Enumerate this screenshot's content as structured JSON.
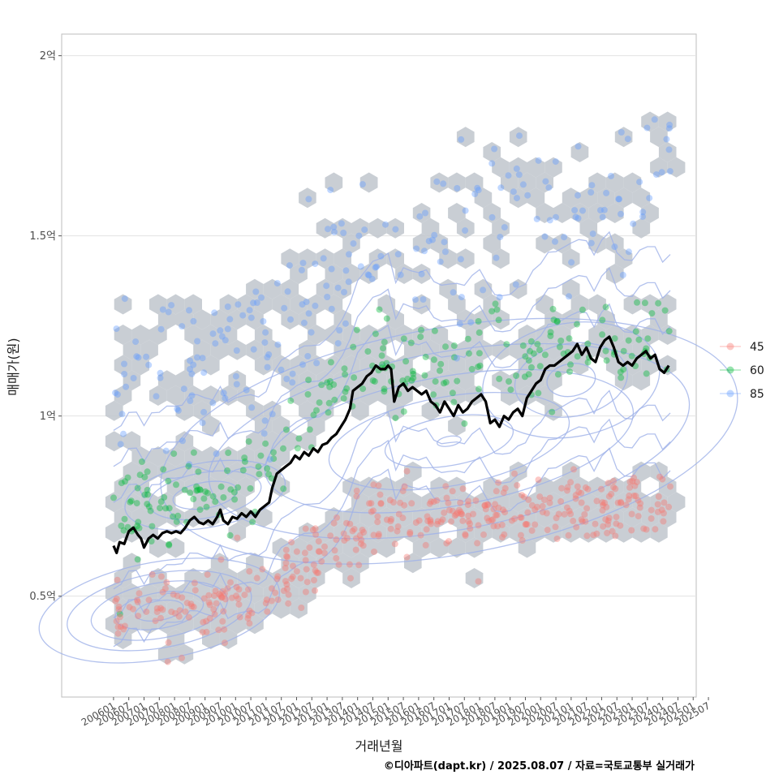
{
  "chart_data": {
    "type": "scatter",
    "xlabel": "거래년월",
    "ylabel": "매매가(원)",
    "caption": "©디아파트(dapt.kr) / 2025.08.07 / 자료=국토교통부 실거래가",
    "x_ticks": [
      "200601",
      "200607",
      "200701",
      "200707",
      "200801",
      "200807",
      "200901",
      "200907",
      "201001",
      "201007",
      "201101",
      "201107",
      "201201",
      "201207",
      "201301",
      "201307",
      "201401",
      "201407",
      "201501",
      "201507",
      "201601",
      "201607",
      "201701",
      "201707",
      "201801",
      "201807",
      "201901",
      "201907",
      "202001",
      "202007",
      "202101",
      "202107",
      "202201",
      "202207",
      "202301",
      "202307",
      "202401",
      "202407",
      "202501",
      "202507"
    ],
    "y_ticks": [
      {
        "value": 0.5,
        "label": "0.5억"
      },
      {
        "value": 1.0,
        "label": "1억"
      },
      {
        "value": 1.5,
        "label": "1.5억"
      },
      {
        "value": 2.0,
        "label": "2억"
      }
    ],
    "ylim": [
      0.22,
      2.06
    ],
    "xlim": [
      -3.4,
      38.2
    ],
    "legend": {
      "position": "right",
      "items": [
        {
          "label": "45",
          "color": "#F8766D"
        },
        {
          "label": "60",
          "color": "#00BA38"
        },
        {
          "label": "85",
          "color": "#619CFF"
        }
      ]
    },
    "hexbin_color": "#c0c5cc",
    "contour_color": "#9fb2e8",
    "trend_line": {
      "color": "#000000",
      "points": [
        [
          0,
          0.64
        ],
        [
          0.2,
          0.62
        ],
        [
          0.4,
          0.65
        ],
        [
          0.7,
          0.645
        ],
        [
          1,
          0.68
        ],
        [
          1.3,
          0.69
        ],
        [
          1.6,
          0.67
        ],
        [
          1.8,
          0.66
        ],
        [
          2,
          0.635
        ],
        [
          2.3,
          0.66
        ],
        [
          2.6,
          0.67
        ],
        [
          2.9,
          0.66
        ],
        [
          3.2,
          0.675
        ],
        [
          3.5,
          0.68
        ],
        [
          3.8,
          0.675
        ],
        [
          4.1,
          0.68
        ],
        [
          4.4,
          0.675
        ],
        [
          4.7,
          0.69
        ],
        [
          5,
          0.71
        ],
        [
          5.3,
          0.72
        ],
        [
          5.6,
          0.705
        ],
        [
          5.9,
          0.7
        ],
        [
          6.2,
          0.71
        ],
        [
          6.5,
          0.7
        ],
        [
          6.8,
          0.72
        ],
        [
          7.0,
          0.74
        ],
        [
          7.2,
          0.71
        ],
        [
          7.5,
          0.7
        ],
        [
          7.8,
          0.72
        ],
        [
          8.1,
          0.715
        ],
        [
          8.4,
          0.73
        ],
        [
          8.7,
          0.72
        ],
        [
          9,
          0.735
        ],
        [
          9.3,
          0.72
        ],
        [
          9.6,
          0.74
        ],
        [
          9.9,
          0.75
        ],
        [
          10.2,
          0.76
        ],
        [
          10.4,
          0.8
        ],
        [
          10.7,
          0.84
        ],
        [
          11,
          0.85
        ],
        [
          11.3,
          0.86
        ],
        [
          11.6,
          0.87
        ],
        [
          11.9,
          0.89
        ],
        [
          12.2,
          0.88
        ],
        [
          12.5,
          0.9
        ],
        [
          12.8,
          0.89
        ],
        [
          13.1,
          0.91
        ],
        [
          13.4,
          0.9
        ],
        [
          13.7,
          0.92
        ],
        [
          14,
          0.925
        ],
        [
          14.3,
          0.94
        ],
        [
          14.6,
          0.95
        ],
        [
          14.9,
          0.97
        ],
        [
          15.2,
          0.99
        ],
        [
          15.5,
          1.02
        ],
        [
          15.7,
          1.07
        ],
        [
          16,
          1.08
        ],
        [
          16.3,
          1.09
        ],
        [
          16.6,
          1.11
        ],
        [
          16.9,
          1.12
        ],
        [
          17.2,
          1.14
        ],
        [
          17.5,
          1.13
        ],
        [
          17.8,
          1.13
        ],
        [
          18,
          1.14
        ],
        [
          18.2,
          1.13
        ],
        [
          18.4,
          1.04
        ],
        [
          18.7,
          1.08
        ],
        [
          19,
          1.09
        ],
        [
          19.3,
          1.07
        ],
        [
          19.6,
          1.08
        ],
        [
          19.9,
          1.07
        ],
        [
          20.2,
          1.06
        ],
        [
          20.5,
          1.07
        ],
        [
          20.8,
          1.04
        ],
        [
          21.1,
          1.03
        ],
        [
          21.4,
          1.01
        ],
        [
          21.7,
          1.04
        ],
        [
          22,
          1.02
        ],
        [
          22.3,
          1.0
        ],
        [
          22.6,
          1.03
        ],
        [
          22.9,
          1.01
        ],
        [
          23.2,
          1.02
        ],
        [
          23.5,
          1.04
        ],
        [
          23.8,
          1.05
        ],
        [
          24.1,
          1.06
        ],
        [
          24.4,
          1.04
        ],
        [
          24.7,
          0.98
        ],
        [
          25,
          0.99
        ],
        [
          25.3,
          0.97
        ],
        [
          25.6,
          1.0
        ],
        [
          25.9,
          0.99
        ],
        [
          26.2,
          1.01
        ],
        [
          26.5,
          1.02
        ],
        [
          26.8,
          1.0
        ],
        [
          27.1,
          1.05
        ],
        [
          27.4,
          1.07
        ],
        [
          27.7,
          1.09
        ],
        [
          28,
          1.1
        ],
        [
          28.3,
          1.13
        ],
        [
          28.6,
          1.14
        ],
        [
          28.9,
          1.14
        ],
        [
          29.2,
          1.15
        ],
        [
          29.5,
          1.16
        ],
        [
          29.8,
          1.17
        ],
        [
          30.1,
          1.18
        ],
        [
          30.4,
          1.2
        ],
        [
          30.7,
          1.17
        ],
        [
          31,
          1.19
        ],
        [
          31.3,
          1.16
        ],
        [
          31.6,
          1.15
        ],
        [
          31.9,
          1.19
        ],
        [
          32.2,
          1.21
        ],
        [
          32.5,
          1.22
        ],
        [
          32.8,
          1.19
        ],
        [
          33.1,
          1.15
        ],
        [
          33.4,
          1.14
        ],
        [
          33.7,
          1.15
        ],
        [
          34,
          1.14
        ],
        [
          34.3,
          1.16
        ],
        [
          34.6,
          1.17
        ],
        [
          34.9,
          1.18
        ],
        [
          35.2,
          1.16
        ],
        [
          35.5,
          1.17
        ],
        [
          35.8,
          1.13
        ],
        [
          36.1,
          1.12
        ],
        [
          36.4,
          1.14
        ]
      ]
    }
  }
}
